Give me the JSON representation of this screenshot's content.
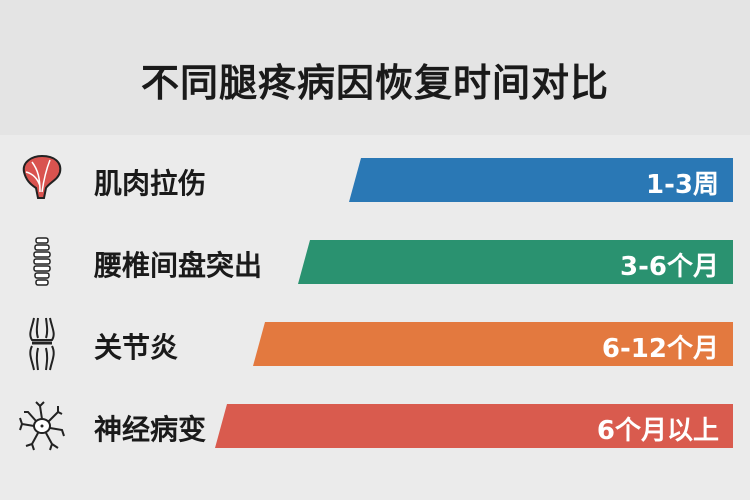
{
  "title": "不同腿疼病因恢复时间对比",
  "chart_data": {
    "type": "bar",
    "title": "不同腿疼病因恢复时间对比",
    "orientation": "horizontal",
    "categories": [
      "肌肉拉伤",
      "腰椎间盘突出",
      "关节炎",
      "神经病变"
    ],
    "value_labels": [
      "1-3周",
      "3-6个月",
      "6-12个月",
      "6个月以上"
    ],
    "relative_length": [
      0.6,
      0.68,
      0.75,
      0.81
    ],
    "colors": [
      "#2a78b5",
      "#2a9270",
      "#e3793f",
      "#d95b4e"
    ],
    "icons": [
      "muscle-icon",
      "spine-icon",
      "knee-joint-icon",
      "neuron-icon"
    ]
  }
}
